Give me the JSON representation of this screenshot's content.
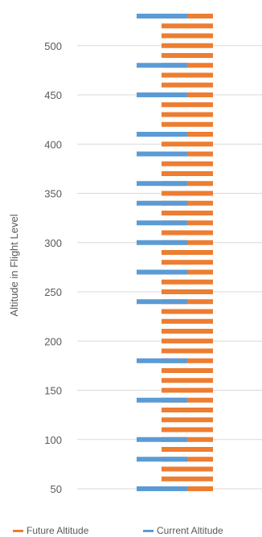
{
  "chart_data": {
    "type": "bar",
    "ylabel": "Altitude in Flight Level",
    "ylim": [
      40,
      535
    ],
    "y_ticks": [
      "50",
      "100",
      "150",
      "200",
      "250",
      "300",
      "350",
      "400",
      "450",
      "500"
    ],
    "grid": true,
    "legend_position": "bottom",
    "colors": {
      "future": "#ED7D31",
      "current": "#5B9BD5"
    },
    "series": [
      {
        "name": "Future Altitude",
        "levels": [
          50,
          60,
          70,
          80,
          90,
          100,
          110,
          120,
          130,
          140,
          150,
          160,
          170,
          180,
          190,
          200,
          210,
          220,
          230,
          240,
          250,
          260,
          270,
          280,
          290,
          300,
          310,
          320,
          330,
          340,
          350,
          360,
          370,
          380,
          390,
          400,
          410,
          420,
          430,
          440,
          450,
          460,
          470,
          480,
          490,
          500,
          510,
          520,
          530
        ]
      },
      {
        "name": "Current Altitude",
        "levels": [
          50,
          80,
          100,
          140,
          180,
          240,
          270,
          300,
          320,
          340,
          360,
          390,
          410,
          450,
          480,
          530
        ]
      }
    ]
  }
}
